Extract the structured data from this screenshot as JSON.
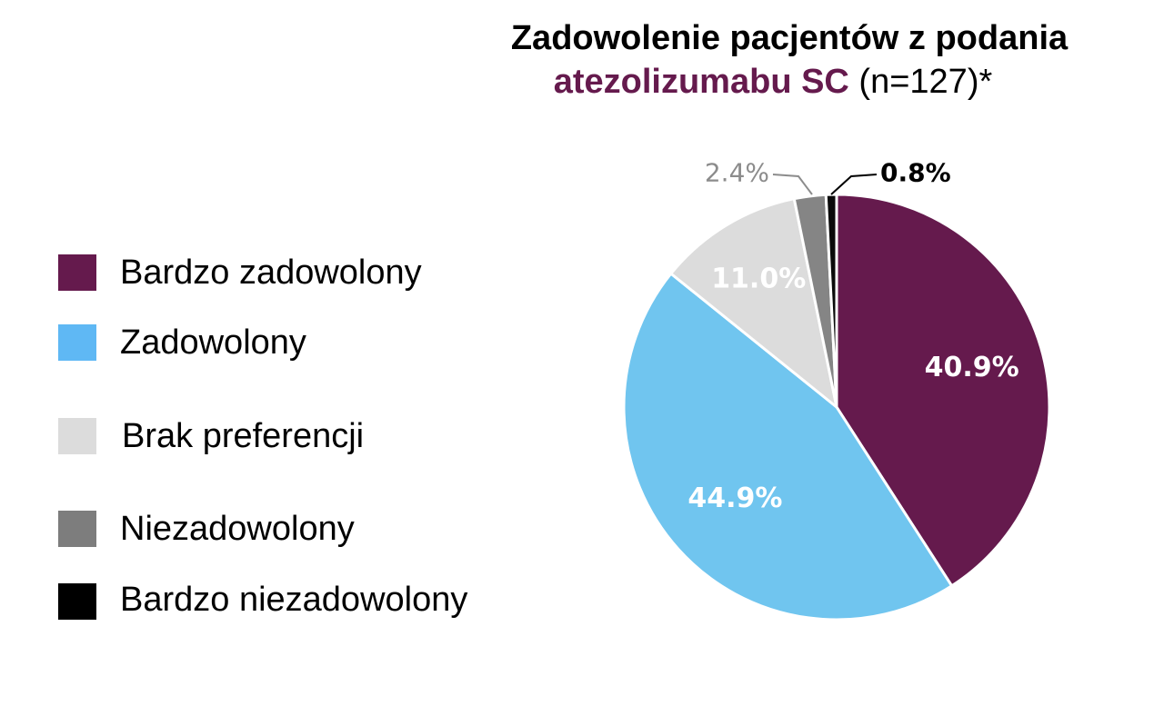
{
  "title": {
    "line1": "Zadowolenie pacjentów z podania",
    "line2_accent": "atezolizumabu SC",
    "line2_rest": " (n=127)*"
  },
  "colors": {
    "title_accent": "#651a4d"
  },
  "chart_data": {
    "type": "pie",
    "title": "Zadowolenie pacjentów z podania atezolizumabu SC (n=127)*",
    "legend_position": "left",
    "slices": [
      {
        "label": "Bardzo zadowolony",
        "value": 40.9,
        "display": "40.9%",
        "color": "#651a4d",
        "label_color": "#ffffff"
      },
      {
        "label": "Zadowolony",
        "value": 44.9,
        "display": "44.9%",
        "color": "#70c5ef",
        "label_color": "#ffffff"
      },
      {
        "label": "Brak preferencji",
        "value": 11.0,
        "display": "11.0%",
        "color": "#dcdcdc",
        "label_color": "#ffffff"
      },
      {
        "label": "Niezadowolony",
        "value": 2.4,
        "display": "2.4%",
        "color": "#858585",
        "label_color": "#8c8c8c"
      },
      {
        "label": "Bardzo niezadowolony",
        "value": 0.8,
        "display": "0.8%",
        "color": "#0a0a0a",
        "label_color": "#000000"
      }
    ]
  },
  "legend": [
    {
      "label": "Bardzo zadowolony",
      "color": "#651a4d"
    },
    {
      "label": "Zadowolony",
      "color": "#5fb8f4"
    },
    {
      "label": "Brak preferencji",
      "color": "#dcdcdc"
    },
    {
      "label": "Niezadowolony",
      "color": "#7d7d7d"
    },
    {
      "label": "Bardzo niezadowolony",
      "color": "#000000"
    }
  ]
}
